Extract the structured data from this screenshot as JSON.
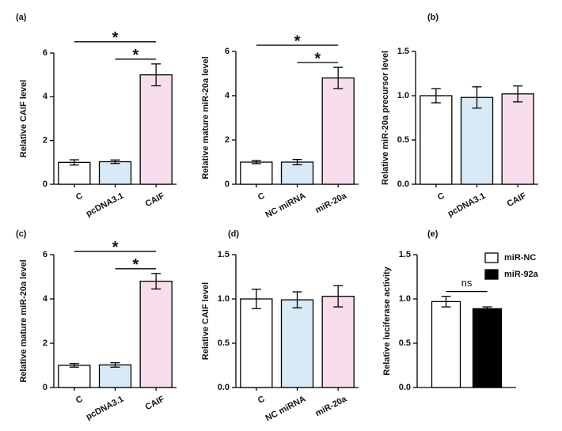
{
  "chart_data": [
    {
      "type": "bar",
      "panel": "(a)",
      "ylabel": "Relative CAIF level",
      "categories": [
        "C",
        "pcDNA3.1",
        "CAIF"
      ],
      "values": [
        1.0,
        1.03,
        5.0
      ],
      "errors": [
        0.12,
        0.08,
        0.5
      ],
      "colors": [
        "#ffffff",
        "#d8eaf6",
        "#f8deec"
      ],
      "ylim": [
        0,
        6
      ],
      "yticks": [
        0,
        2,
        4,
        6
      ],
      "annotations": [
        {
          "text": "*",
          "between": [
            "C",
            "CAIF"
          ]
        },
        {
          "text": "*",
          "between": [
            "pcDNA3.1",
            "CAIF"
          ]
        }
      ]
    },
    {
      "type": "bar",
      "ylabel": "Relative mature miR-20a level",
      "categories": [
        "C",
        "NC miRNA",
        "miR-20a"
      ],
      "values": [
        1.0,
        1.0,
        4.8
      ],
      "errors": [
        0.07,
        0.12,
        0.48
      ],
      "colors": [
        "#ffffff",
        "#d8eaf6",
        "#f8deec"
      ],
      "ylim": [
        0,
        6
      ],
      "yticks": [
        0,
        2,
        4,
        6
      ],
      "annotations": [
        {
          "text": "*",
          "between": [
            "C",
            "miR-20a"
          ]
        },
        {
          "text": "*",
          "between": [
            "NC miRNA",
            "miR-20a"
          ]
        }
      ]
    },
    {
      "type": "bar",
      "panel": "(b)",
      "ylabel": "Relative miR-20a precursor level",
      "categories": [
        "C",
        "pcDNA3.1",
        "CAIF"
      ],
      "values": [
        1.0,
        0.98,
        1.02
      ],
      "errors": [
        0.08,
        0.12,
        0.09
      ],
      "colors": [
        "#ffffff",
        "#d8eaf6",
        "#f8deec"
      ],
      "ylim": [
        0,
        1.5
      ],
      "yticks": [
        {
          "value": 0,
          "label": "0.0"
        },
        {
          "value": 0.5,
          "label": "0.5"
        },
        {
          "value": 1,
          "label": "1.0"
        },
        {
          "value": 1.5,
          "label": "1.5"
        }
      ]
    },
    {
      "type": "bar",
      "panel": "(c)",
      "ylabel": "Relative mature miR-20a level",
      "categories": [
        "C",
        "pcDNA3.1",
        "CAIF"
      ],
      "values": [
        1.0,
        1.02,
        4.8
      ],
      "errors": [
        0.08,
        0.1,
        0.35
      ],
      "colors": [
        "#ffffff",
        "#d8eaf6",
        "#f8deec"
      ],
      "ylim": [
        0,
        6
      ],
      "yticks": [
        0,
        2,
        4,
        6
      ],
      "annotations": [
        {
          "text": "*",
          "between": [
            "C",
            "CAIF"
          ]
        },
        {
          "text": "*",
          "between": [
            "pcDNA3.1",
            "CAIF"
          ]
        }
      ]
    },
    {
      "type": "bar",
      "panel": "(d)",
      "ylabel": "Relative CAIF level",
      "categories": [
        "C",
        "NC miRNA",
        "miR-20a"
      ],
      "values": [
        1.0,
        0.99,
        1.03
      ],
      "errors": [
        0.11,
        0.09,
        0.12
      ],
      "colors": [
        "#ffffff",
        "#d8eaf6",
        "#f8deec"
      ],
      "ylim": [
        0,
        1.5
      ],
      "yticks": [
        {
          "value": 0,
          "label": "0.0"
        },
        {
          "value": 0.5,
          "label": "0.5"
        },
        {
          "value": 1,
          "label": "1.0"
        },
        {
          "value": 1.5,
          "label": "1.5"
        }
      ]
    },
    {
      "type": "bar",
      "panel": "(e)",
      "ylabel": "Relative luciferase activity",
      "series": [
        {
          "name": "miR-NC",
          "color": "#ffffff",
          "values": [
            0.97
          ],
          "errors": [
            0.06
          ]
        },
        {
          "name": "miR-92a",
          "color": "#000000",
          "values": [
            0.89
          ],
          "errors": [
            0.02
          ]
        }
      ],
      "ylim": [
        0,
        1.5
      ],
      "yticks": [
        {
          "value": 0,
          "label": "0.0"
        },
        {
          "value": 0.5,
          "label": "0.5"
        },
        {
          "value": 1,
          "label": "1.0"
        },
        {
          "value": 1.5,
          "label": "1.5"
        }
      ],
      "annotations": [
        {
          "text": "ns",
          "between": [
            "miR-NC",
            "miR-92a"
          ]
        }
      ]
    }
  ]
}
